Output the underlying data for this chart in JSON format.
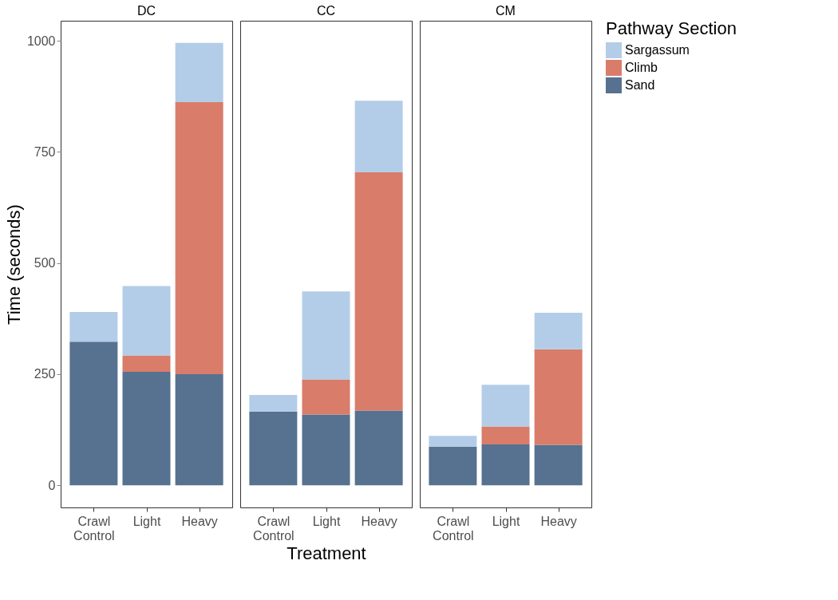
{
  "chart_data": [
    {
      "type": "bar",
      "title": "DC",
      "ylabel": "Time (seconds)",
      "categories": [
        "Crawl Control",
        "Light",
        "Heavy"
      ],
      "stacked": true,
      "ylim": [
        -50,
        1045
      ],
      "yticks": [
        0,
        250,
        500,
        750,
        1000
      ],
      "grid": false,
      "legend": false,
      "series": [
        {
          "color": "#577190",
          "values": [
            323,
            255,
            250
          ]
        },
        {
          "color": "#d97c6a",
          "values": [
            0,
            37,
            612
          ]
        },
        {
          "color": "#b3cde8",
          "values": [
            67,
            156,
            133
          ]
        }
      ]
    },
    {
      "type": "bar",
      "title": "CC",
      "xlabel": "Treatment",
      "categories": [
        "Crawl Control",
        "Light",
        "Heavy"
      ],
      "stacked": true,
      "ylim": [
        -50,
        1045
      ],
      "yticks": [
        0,
        250,
        500,
        750,
        1000
      ],
      "grid": false,
      "legend": false,
      "tick_labels": "x",
      "series": [
        {
          "color": "#577190",
          "values": [
            166,
            159,
            168
          ]
        },
        {
          "color": "#d97c6a",
          "values": [
            0,
            79,
            536
          ]
        },
        {
          "color": "#b3cde8",
          "values": [
            37,
            198,
            161
          ]
        }
      ]
    },
    {
      "type": "bar",
      "title": "CM",
      "legend_title": "Pathway Section",
      "categories": [
        "Crawl Control",
        "Light",
        "Heavy"
      ],
      "stacked": true,
      "ylim": [
        -50,
        1045
      ],
      "yticks": [
        0,
        250,
        500,
        750,
        1000
      ],
      "grid": false,
      "legend": "right",
      "tick_labels": "x",
      "series": [
        {
          "name": "Sand",
          "color": "#577190",
          "values": [
            87,
            92,
            91
          ]
        },
        {
          "name": "Climb",
          "color": "#d97c6a",
          "values": [
            0,
            40,
            215
          ]
        },
        {
          "name": "Sargassum",
          "color": "#b3cde8",
          "values": [
            24,
            94,
            82
          ]
        }
      ]
    }
  ]
}
